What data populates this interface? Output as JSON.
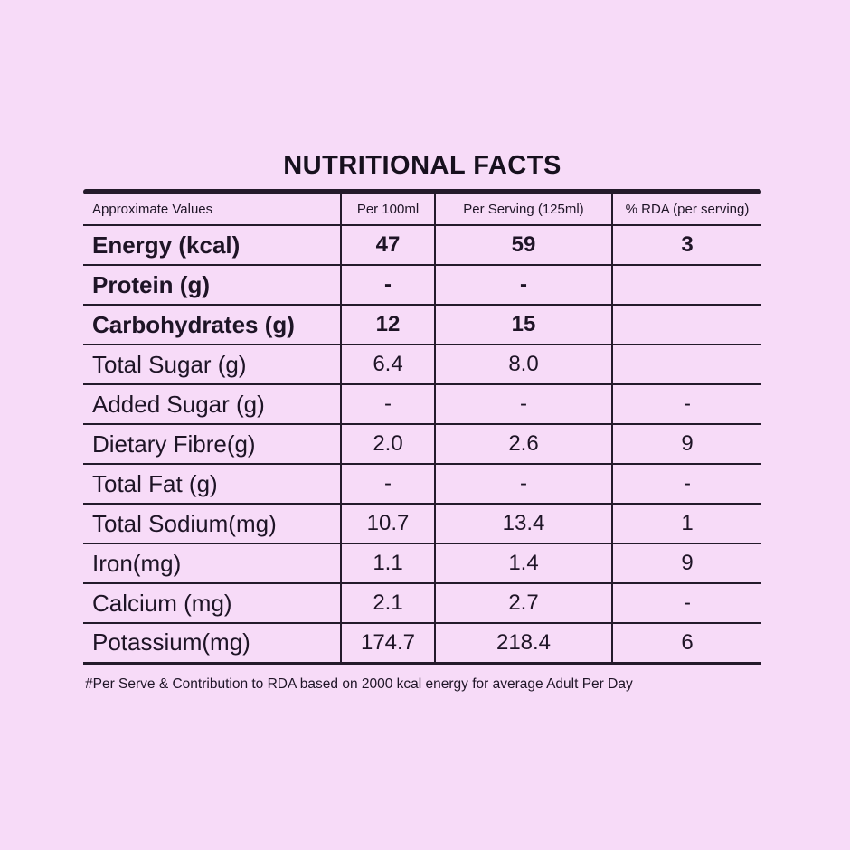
{
  "page": {
    "background_color": "#f7dbf8",
    "text_color": "#1e1426",
    "line_color": "#241a2b"
  },
  "table": {
    "title": "NUTRITIONAL FACTS",
    "columns": [
      "Approximate Values",
      "Per 100ml",
      "Per Serving (125ml)",
      "% RDA (per serving)"
    ],
    "rows": [
      {
        "label": "Energy (kcal)",
        "per_100ml": "47",
        "per_serving": "59",
        "rda": "3",
        "bold": true
      },
      {
        "label": "Protein (g)",
        "per_100ml": "-",
        "per_serving": "-",
        "rda": "",
        "bold": true
      },
      {
        "label": "Carbohydrates (g)",
        "per_100ml": "12",
        "per_serving": "15",
        "rda": "",
        "bold": true
      },
      {
        "label": "Total Sugar (g)",
        "per_100ml": "6.4",
        "per_serving": "8.0",
        "rda": "",
        "bold": false
      },
      {
        "label": "Added Sugar (g)",
        "per_100ml": "-",
        "per_serving": "-",
        "rda": "-",
        "bold": false
      },
      {
        "label": "Dietary Fibre(g)",
        "per_100ml": "2.0",
        "per_serving": "2.6",
        "rda": "9",
        "bold": false
      },
      {
        "label": "Total Fat (g)",
        "per_100ml": "-",
        "per_serving": "-",
        "rda": "-",
        "bold": false
      },
      {
        "label": "Total Sodium(mg)",
        "per_100ml": "10.7",
        "per_serving": "13.4",
        "rda": "1",
        "bold": false
      },
      {
        "label": "Iron(mg)",
        "per_100ml": "1.1",
        "per_serving": "1.4",
        "rda": "9",
        "bold": false
      },
      {
        "label": "Calcium (mg)",
        "per_100ml": "2.1",
        "per_serving": "2.7",
        "rda": "-",
        "bold": false
      },
      {
        "label": "Potassium(mg)",
        "per_100ml": "174.7",
        "per_serving": "218.4",
        "rda": "6",
        "bold": false
      }
    ],
    "footnote": "#Per Serve & Contribution to RDA based on 2000 kcal energy for average Adult Per Day"
  }
}
